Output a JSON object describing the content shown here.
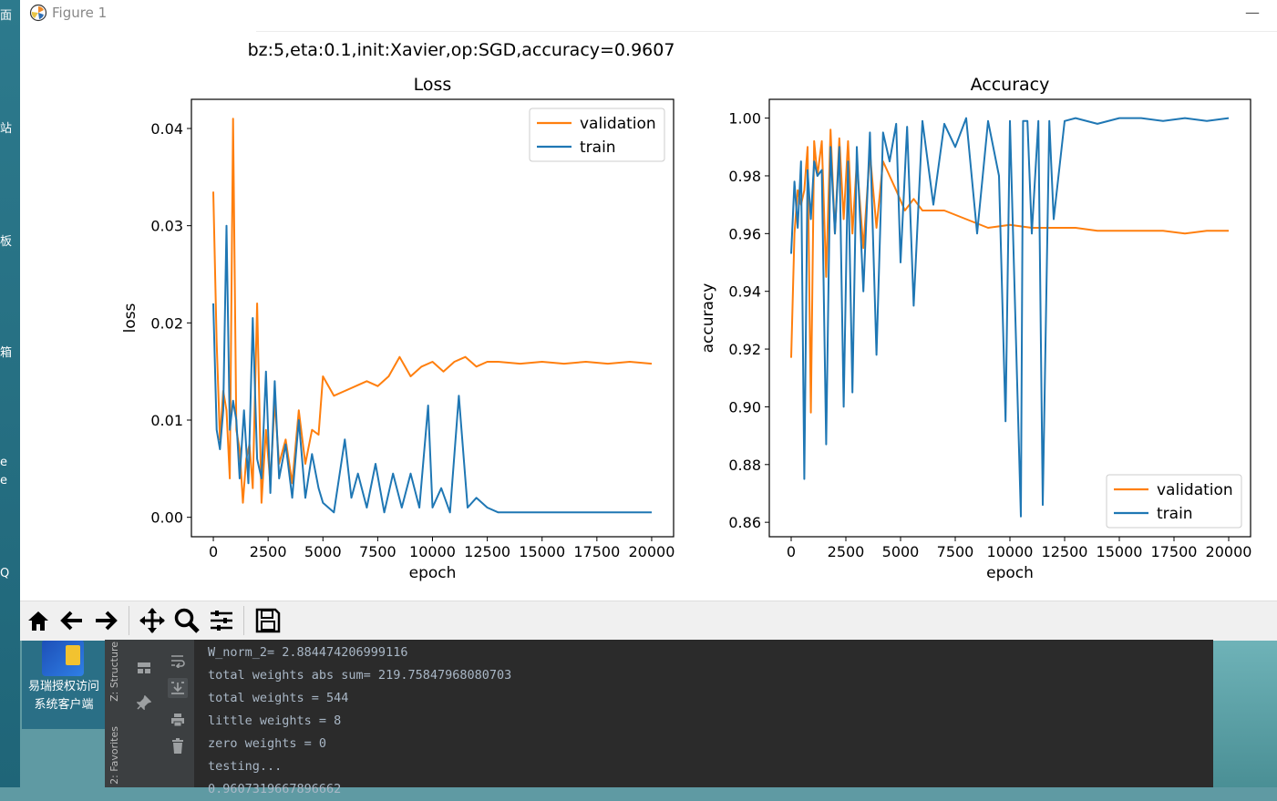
{
  "desktop": {
    "left_fragments": [
      "面",
      "站",
      "板",
      "箱",
      "e",
      "e",
      "Q"
    ],
    "icon_label_line1": "易瑞授权访问",
    "icon_label_line2": "系统客户端"
  },
  "window": {
    "title": "Figure 1",
    "minimize_glyph": "—"
  },
  "figure": {
    "suptitle": "bz:5,eta:0.1,init:Xavier,op:SGD,accuracy=0.9607"
  },
  "colors": {
    "validation": "#ff7f0e",
    "train": "#1f77b4"
  },
  "chart_data": [
    {
      "type": "line",
      "title": "Loss",
      "xlabel": "epoch",
      "ylabel": "loss",
      "xlim": [
        -1000,
        21000
      ],
      "ylim": [
        -0.002,
        0.043
      ],
      "xticks": [
        0,
        2500,
        5000,
        7500,
        10000,
        12500,
        15000,
        17500,
        20000
      ],
      "yticks": [
        0.0,
        0.01,
        0.02,
        0.03,
        0.04
      ],
      "ytick_labels": [
        "0.00",
        "0.01",
        "0.02",
        "0.03",
        "0.04"
      ],
      "legend": "upper right",
      "legend_labels": [
        "validation",
        "train"
      ],
      "series": [
        {
          "name": "validation",
          "x": [
            0,
            150,
            300,
            450,
            600,
            750,
            900,
            1050,
            1200,
            1350,
            1500,
            1650,
            1800,
            2000,
            2200,
            2400,
            2600,
            2800,
            3000,
            3300,
            3600,
            3900,
            4200,
            4500,
            4800,
            5000,
            5500,
            6000,
            6500,
            7000,
            7500,
            8000,
            8500,
            9000,
            9500,
            10000,
            10500,
            11000,
            11500,
            12000,
            12500,
            13000,
            14000,
            15000,
            16000,
            17000,
            18000,
            19000,
            20000
          ],
          "y": [
            0.0335,
            0.018,
            0.008,
            0.013,
            0.011,
            0.004,
            0.041,
            0.009,
            0.007,
            0.0015,
            0.006,
            0.0075,
            0.003,
            0.022,
            0.0015,
            0.009,
            0.0035,
            0.012,
            0.0055,
            0.008,
            0.0035,
            0.011,
            0.0055,
            0.009,
            0.0085,
            0.0145,
            0.0125,
            0.013,
            0.0135,
            0.014,
            0.0135,
            0.0145,
            0.0165,
            0.0145,
            0.0155,
            0.016,
            0.015,
            0.016,
            0.0165,
            0.0155,
            0.016,
            0.016,
            0.0158,
            0.016,
            0.0158,
            0.016,
            0.0158,
            0.016,
            0.0158
          ]
        },
        {
          "name": "train",
          "x": [
            0,
            150,
            300,
            450,
            600,
            750,
            900,
            1050,
            1200,
            1400,
            1600,
            1800,
            2000,
            2200,
            2400,
            2600,
            2800,
            3000,
            3300,
            3600,
            3900,
            4200,
            4500,
            4800,
            5000,
            5500,
            6000,
            6300,
            6600,
            7000,
            7400,
            7800,
            8200,
            8600,
            9000,
            9400,
            9800,
            10000,
            10400,
            10800,
            11200,
            11600,
            12000,
            12500,
            13000,
            14000,
            15000,
            16000,
            17000,
            18000,
            19000,
            20000
          ],
          "y": [
            0.022,
            0.009,
            0.007,
            0.011,
            0.03,
            0.009,
            0.012,
            0.01,
            0.004,
            0.011,
            0.0035,
            0.0205,
            0.006,
            0.004,
            0.015,
            0.0025,
            0.014,
            0.004,
            0.0075,
            0.002,
            0.01,
            0.002,
            0.0065,
            0.003,
            0.0015,
            0.0005,
            0.008,
            0.002,
            0.0045,
            0.001,
            0.0055,
            0.0005,
            0.0045,
            0.001,
            0.0045,
            0.001,
            0.0115,
            0.001,
            0.003,
            0.0005,
            0.0125,
            0.001,
            0.002,
            0.001,
            0.0005,
            0.0005,
            0.0005,
            0.0005,
            0.0005,
            0.0005,
            0.0005,
            0.0005
          ]
        }
      ]
    },
    {
      "type": "line",
      "title": "Accuracy",
      "xlabel": "epoch",
      "ylabel": "accuracy",
      "xlim": [
        -1000,
        21000
      ],
      "ylim": [
        0.855,
        1.0065
      ],
      "xticks": [
        0,
        2500,
        5000,
        7500,
        10000,
        12500,
        15000,
        17500,
        20000
      ],
      "yticks": [
        0.86,
        0.88,
        0.9,
        0.92,
        0.94,
        0.96,
        0.98,
        1.0
      ],
      "ytick_labels": [
        "0.86",
        "0.88",
        "0.90",
        "0.92",
        "0.94",
        "0.96",
        "0.98",
        "1.00"
      ],
      "legend": "lower right",
      "legend_labels": [
        "validation",
        "train"
      ],
      "series": [
        {
          "name": "validation",
          "x": [
            0,
            150,
            300,
            450,
            600,
            750,
            900,
            1050,
            1200,
            1400,
            1600,
            1800,
            2000,
            2200,
            2400,
            2600,
            2800,
            3000,
            3300,
            3600,
            3900,
            4200,
            4500,
            4800,
            5200,
            5600,
            6000,
            7000,
            8000,
            9000,
            10000,
            11000,
            12000,
            13000,
            14000,
            15000,
            16000,
            17000,
            18000,
            19000,
            20000
          ],
          "y": [
            0.917,
            0.96,
            0.975,
            0.97,
            0.975,
            0.99,
            0.898,
            0.992,
            0.98,
            0.992,
            0.945,
            0.996,
            0.96,
            0.993,
            0.965,
            0.992,
            0.96,
            0.985,
            0.955,
            0.988,
            0.962,
            0.985,
            0.98,
            0.975,
            0.968,
            0.972,
            0.968,
            0.968,
            0.965,
            0.962,
            0.963,
            0.962,
            0.962,
            0.962,
            0.961,
            0.961,
            0.961,
            0.961,
            0.96,
            0.961,
            0.961
          ]
        },
        {
          "name": "train",
          "x": [
            0,
            150,
            300,
            450,
            600,
            750,
            900,
            1050,
            1200,
            1400,
            1600,
            1800,
            2000,
            2200,
            2400,
            2600,
            2800,
            3000,
            3300,
            3600,
            3900,
            4200,
            4500,
            4800,
            5000,
            5300,
            5600,
            6000,
            6500,
            7000,
            7500,
            8000,
            8500,
            9000,
            9500,
            9800,
            10000,
            10500,
            10600,
            10800,
            11000,
            11300,
            11500,
            11800,
            12000,
            12500,
            13000,
            14000,
            15000,
            16000,
            17000,
            18000,
            19000,
            20000
          ],
          "y": [
            0.953,
            0.978,
            0.962,
            0.985,
            0.875,
            0.982,
            0.965,
            0.985,
            0.98,
            0.982,
            0.887,
            0.99,
            0.96,
            0.99,
            0.9,
            0.985,
            0.905,
            0.99,
            0.94,
            0.995,
            0.918,
            0.995,
            0.985,
            0.998,
            0.95,
            0.997,
            0.935,
            0.999,
            0.97,
            0.998,
            0.99,
            1.0,
            0.96,
            0.999,
            0.98,
            0.895,
            0.999,
            0.862,
            0.999,
            0.999,
            0.96,
            0.999,
            0.866,
            0.999,
            0.965,
            0.999,
            1.0,
            0.998,
            1.0,
            1.0,
            0.999,
            1.0,
            0.999,
            1.0
          ]
        }
      ]
    }
  ],
  "console": {
    "lines": [
      "W_norm_2= 2.884474206999116",
      "total weights abs sum= 219.75847968080703",
      "total weights = 544",
      "little weights = 8",
      "zero weights = 0",
      "testing..."
    ],
    "partial_line": "0.9607319667896662"
  },
  "ide": {
    "structure_tab": "Z: Structure",
    "favorites_tab": "2: Favorites"
  },
  "toolbar": {
    "buttons": [
      "home-icon",
      "back-icon",
      "forward-icon",
      "pan-icon",
      "zoom-icon",
      "configure-icon",
      "save-icon"
    ]
  }
}
